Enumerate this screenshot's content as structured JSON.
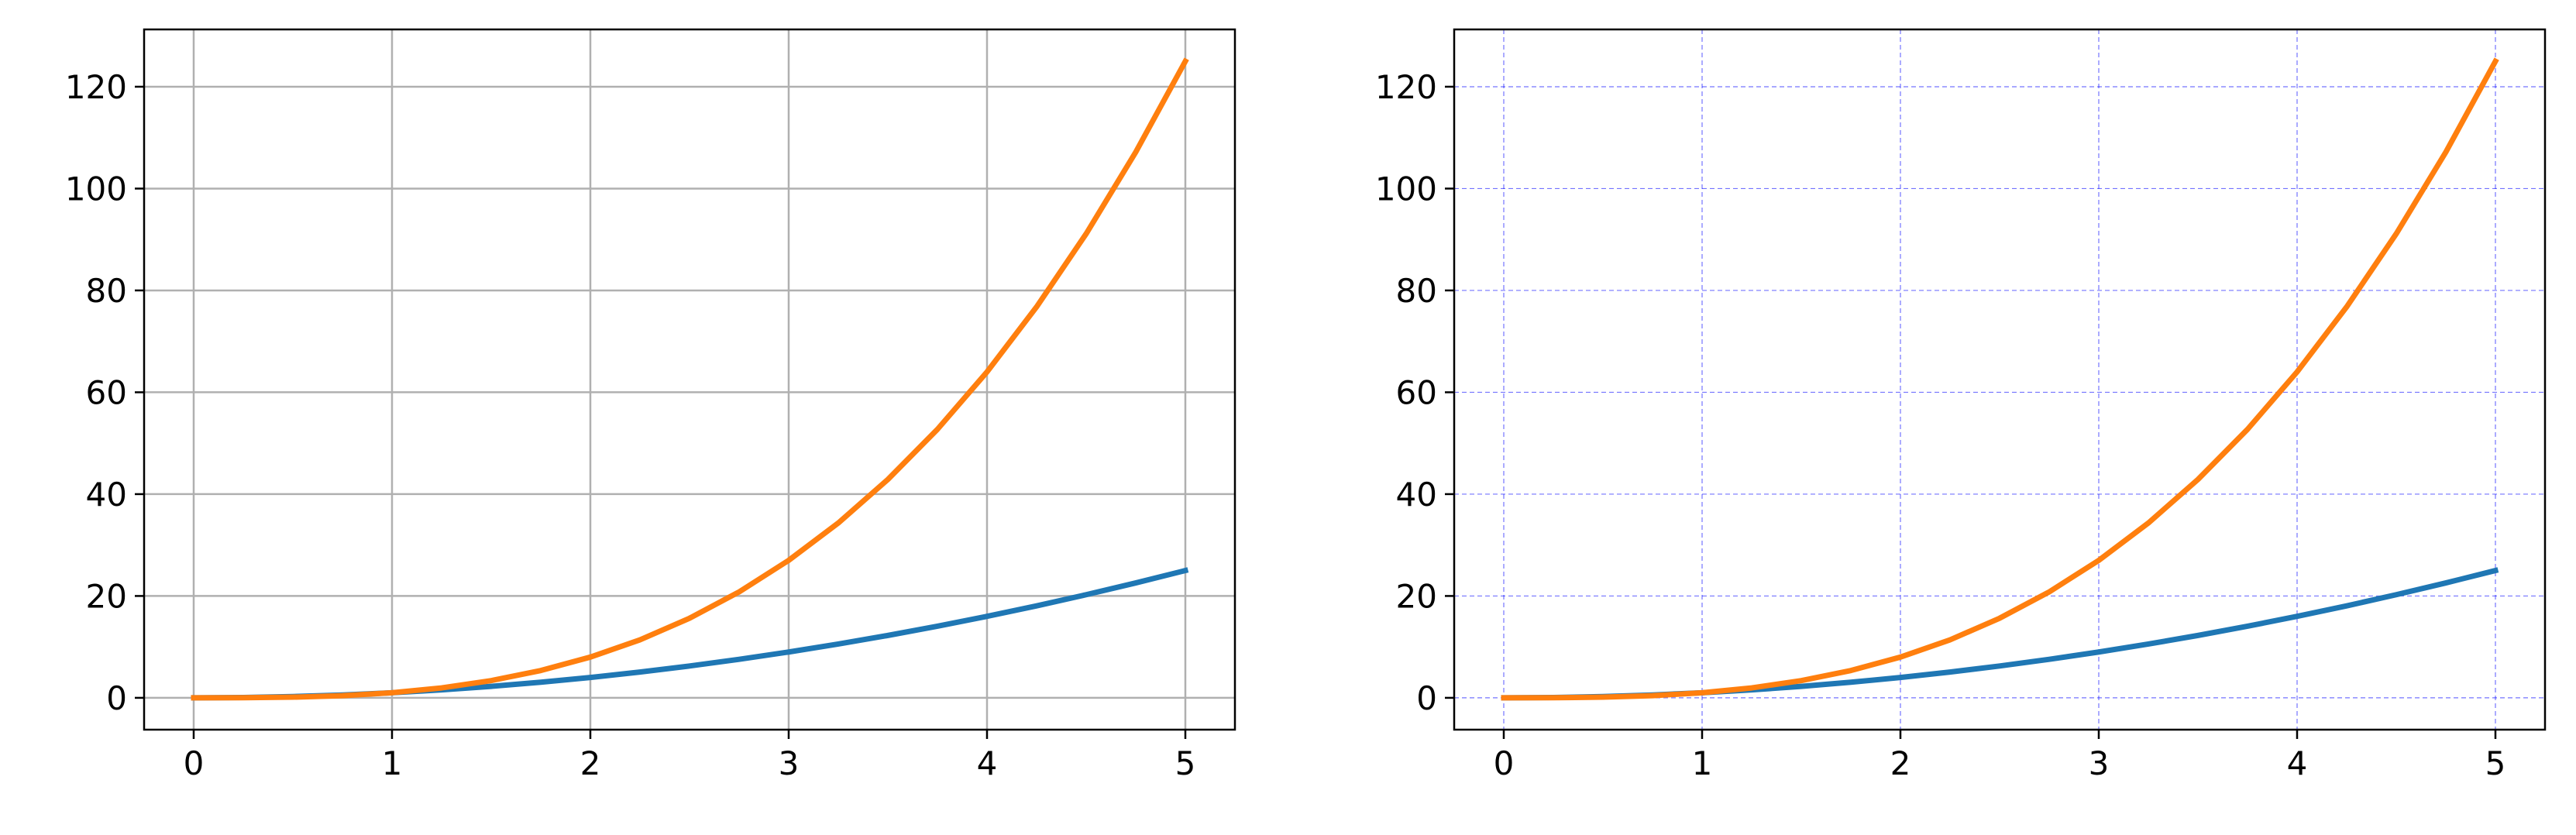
{
  "colors": {
    "series_1": "#1f77b4",
    "series_2": "#ff7f0e",
    "frame": "#000000",
    "grid_left": "#b0b0b0",
    "grid_right": "#0000ff"
  },
  "chart_data": [
    {
      "type": "line",
      "title": "",
      "xlabel": "",
      "ylabel": "",
      "xlim": [
        -0.25,
        5.25
      ],
      "ylim": [
        -6.25,
        131.25
      ],
      "xticks": [
        0,
        1,
        2,
        3,
        4,
        5
      ],
      "yticks": [
        0,
        20,
        40,
        60,
        80,
        100,
        120
      ],
      "grid": {
        "on": true,
        "style": "solid",
        "color": "#b0b0b0"
      },
      "legend": "none",
      "x": [
        0,
        0.25,
        0.5,
        0.75,
        1,
        1.25,
        1.5,
        1.75,
        2,
        2.25,
        2.5,
        2.75,
        3,
        3.25,
        3.5,
        3.75,
        4,
        4.25,
        4.5,
        4.75,
        5
      ],
      "series": [
        {
          "color": "#1f77b4",
          "values": [
            0,
            0.06,
            0.25,
            0.56,
            1,
            1.56,
            2.25,
            3.06,
            4,
            5.06,
            6.25,
            7.56,
            9,
            10.56,
            12.25,
            14.06,
            16,
            18.06,
            20.25,
            22.56,
            25
          ]
        },
        {
          "color": "#ff7f0e",
          "values": [
            0,
            0.02,
            0.13,
            0.42,
            1,
            1.95,
            3.38,
            5.36,
            8,
            11.39,
            15.63,
            20.8,
            27,
            34.33,
            42.88,
            52.73,
            64,
            76.77,
            91.13,
            107.17,
            125
          ]
        }
      ]
    },
    {
      "type": "line",
      "title": "",
      "xlabel": "",
      "ylabel": "",
      "xlim": [
        -0.25,
        5.25
      ],
      "ylim": [
        -6.25,
        131.25
      ],
      "xticks": [
        0,
        1,
        2,
        3,
        4,
        5
      ],
      "yticks": [
        0,
        20,
        40,
        60,
        80,
        100,
        120
      ],
      "grid": {
        "on": true,
        "style": "dashed",
        "color": "#0000ff"
      },
      "legend": "none",
      "x": [
        0,
        0.25,
        0.5,
        0.75,
        1,
        1.25,
        1.5,
        1.75,
        2,
        2.25,
        2.5,
        2.75,
        3,
        3.25,
        3.5,
        3.75,
        4,
        4.25,
        4.5,
        4.75,
        5
      ],
      "series": [
        {
          "color": "#1f77b4",
          "values": [
            0,
            0.06,
            0.25,
            0.56,
            1,
            1.56,
            2.25,
            3.06,
            4,
            5.06,
            6.25,
            7.56,
            9,
            10.56,
            12.25,
            14.06,
            16,
            18.06,
            20.25,
            22.56,
            25
          ]
        },
        {
          "color": "#ff7f0e",
          "values": [
            0,
            0.02,
            0.13,
            0.42,
            1,
            1.95,
            3.38,
            5.36,
            8,
            11.39,
            15.63,
            20.8,
            27,
            34.33,
            42.88,
            52.73,
            64,
            76.77,
            91.13,
            107.17,
            125
          ]
        }
      ]
    }
  ]
}
